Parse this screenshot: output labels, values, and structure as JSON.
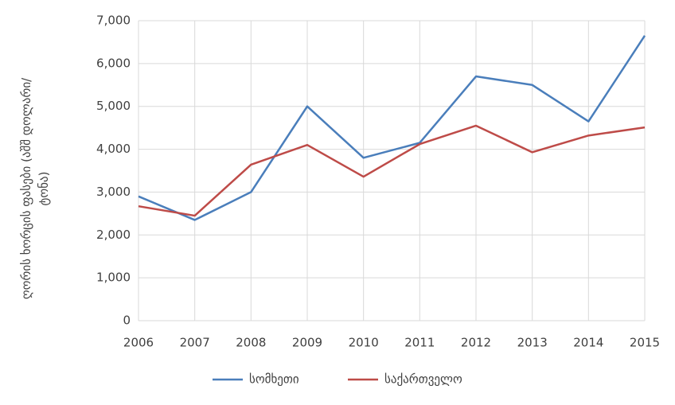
{
  "chart_data": {
    "type": "line",
    "y_label": "ღორის ხორცის ფასები (აშშ დოლარი/ტონა)",
    "x": [
      2006,
      2007,
      2008,
      2009,
      2010,
      2011,
      2012,
      2013,
      2014,
      2015
    ],
    "series": [
      {
        "name": "სომხეთი",
        "color": "#4a7ebb",
        "values": [
          2900,
          2350,
          3000,
          5000,
          3800,
          4150,
          5700,
          5500,
          4650,
          6650
        ]
      },
      {
        "name": "საქართველო",
        "color": "#be4b48",
        "values": [
          2670,
          2450,
          3640,
          4100,
          3360,
          4120,
          4550,
          3930,
          4320,
          4510
        ]
      }
    ],
    "xlim": [
      2006,
      2015
    ],
    "xticks": [
      2006,
      2007,
      2008,
      2009,
      2010,
      2011,
      2012,
      2013,
      2014,
      2015
    ],
    "ylim": [
      0,
      7000
    ],
    "yticks": [
      0,
      {
        "value": 1000,
        "label": "1,000"
      },
      {
        "value": 2000,
        "label": "2,000"
      },
      {
        "value": 3000,
        "label": "3,000"
      },
      {
        "value": 4000,
        "label": "4,000"
      },
      {
        "value": 5000,
        "label": "5,000"
      },
      {
        "value": 6000,
        "label": "6,000"
      },
      {
        "value": 7000,
        "label": "7,000"
      }
    ],
    "grid": true,
    "legend": "bottom"
  }
}
